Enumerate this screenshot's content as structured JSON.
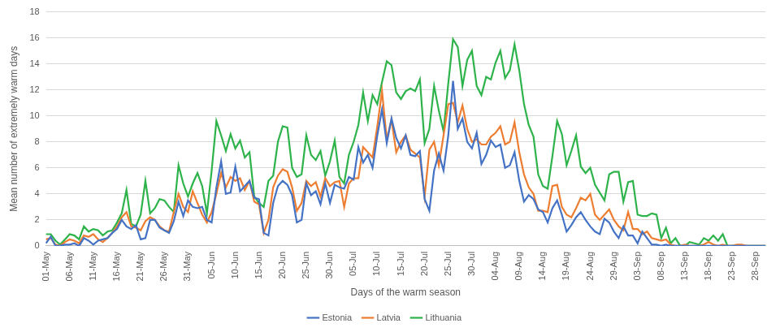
{
  "chart_data": {
    "type": "line",
    "x_label": "Days of the warm season",
    "y_label": "Mean number of extremely warm days",
    "categories": [
      "01-May",
      null,
      null,
      null,
      null,
      "06-May",
      null,
      null,
      null,
      null,
      "11-May",
      null,
      null,
      null,
      null,
      "16-May",
      null,
      null,
      null,
      null,
      "21-May",
      null,
      null,
      null,
      null,
      "26-May",
      null,
      null,
      null,
      null,
      "31-May",
      null,
      null,
      null,
      null,
      "05-Jun",
      null,
      null,
      null,
      null,
      "10-Jun",
      null,
      null,
      null,
      null,
      "15-Jun",
      null,
      null,
      null,
      null,
      "20-Jun",
      null,
      null,
      null,
      null,
      "25-Jun",
      null,
      null,
      null,
      null,
      "30-Jun",
      null,
      null,
      null,
      null,
      "05-Jul",
      null,
      null,
      null,
      null,
      "10-Jul",
      null,
      null,
      null,
      null,
      "15-Jul",
      null,
      null,
      null,
      null,
      "20-Jul",
      null,
      null,
      null,
      null,
      "25-Jul",
      null,
      null,
      null,
      null,
      "30-Jul",
      null,
      null,
      null,
      null,
      "04-Aug",
      null,
      null,
      null,
      null,
      "09-Aug",
      null,
      null,
      null,
      null,
      "14-Aug",
      null,
      null,
      null,
      null,
      "19-Aug",
      null,
      null,
      null,
      null,
      "24-Aug",
      null,
      null,
      null,
      null,
      "29-Aug",
      null,
      null,
      null,
      null,
      "03-Sep",
      null,
      null,
      null,
      null,
      "08-Sep",
      null,
      null,
      null,
      null,
      "13-Sep",
      null,
      null,
      null,
      null,
      "18-Sep",
      null,
      null,
      null,
      null,
      "23-Sep",
      null,
      null,
      null,
      null,
      "28-Sep",
      null,
      null
    ],
    "series": [
      {
        "name": "Estonia",
        "color": "#4472c4",
        "values": [
          0.2,
          0.7,
          0.0,
          0.0,
          0.1,
          0.1,
          0.2,
          0.0,
          0.6,
          0.4,
          0.1,
          0.4,
          0.5,
          0.6,
          1.0,
          1.3,
          2.0,
          1.5,
          1.3,
          1.6,
          0.5,
          0.6,
          2.0,
          2.0,
          1.4,
          1.2,
          1.0,
          1.9,
          3.4,
          2.3,
          3.5,
          3.0,
          2.9,
          3.0,
          2.0,
          1.8,
          4.5,
          6.5,
          4.0,
          4.1,
          6.1,
          4.2,
          4.6,
          5.0,
          3.7,
          3.6,
          1.0,
          0.8,
          3.3,
          4.6,
          5.0,
          4.7,
          3.9,
          1.8,
          2.0,
          4.8,
          3.9,
          4.2,
          3.2,
          4.8,
          3.3,
          4.7,
          4.5,
          4.4,
          5.3,
          5.1,
          7.6,
          6.4,
          7.0,
          6.0,
          8.5,
          10.5,
          7.9,
          9.8,
          8.3,
          7.5,
          8.5,
          7.0,
          6.9,
          7.3,
          3.6,
          2.7,
          5.8,
          7.1,
          5.8,
          8.5,
          12.7,
          9.0,
          9.8,
          8.0,
          7.5,
          8.7,
          6.3,
          7.0,
          8.1,
          7.6,
          7.8,
          6.0,
          6.2,
          7.2,
          5.0,
          3.4,
          3.9,
          3.6,
          2.8,
          2.6,
          1.8,
          2.9,
          3.5,
          2.4,
          1.1,
          1.6,
          2.2,
          2.6,
          2.0,
          1.5,
          1.1,
          0.9,
          2.1,
          1.8,
          1.1,
          0.6,
          1.5,
          0.8,
          0.8,
          0.2,
          1.1,
          0.6,
          0.1,
          0.1,
          0.0,
          0.1,
          0.0,
          0.0,
          0.0,
          0.0,
          0.0,
          0.0,
          0.0,
          0.0,
          0.0,
          0.0,
          0.0,
          0.0,
          0.0,
          0.0,
          0.0,
          0.0,
          0.0,
          0.0,
          0.0,
          0.0,
          0.0
        ]
      },
      {
        "name": "Latvia",
        "color": "#ed7d31",
        "values": [
          0.5,
          0.6,
          0.1,
          0.0,
          0.3,
          0.5,
          0.4,
          0.2,
          0.8,
          0.7,
          0.9,
          0.5,
          0.3,
          0.6,
          1.0,
          1.5,
          2.2,
          2.6,
          1.5,
          1.4,
          1.2,
          1.9,
          2.2,
          2.0,
          1.5,
          1.2,
          1.1,
          2.6,
          4.0,
          3.0,
          2.6,
          4.2,
          3.3,
          2.4,
          1.8,
          2.6,
          4.0,
          5.6,
          4.5,
          5.3,
          5.0,
          5.2,
          4.3,
          5.0,
          3.4,
          3.2,
          1.0,
          2.0,
          4.5,
          5.4,
          5.9,
          5.7,
          4.5,
          2.7,
          3.3,
          5.0,
          4.6,
          4.9,
          3.8,
          5.2,
          4.6,
          4.9,
          5.0,
          3.0,
          4.8,
          5.2,
          5.2,
          7.6,
          7.2,
          6.8,
          9.2,
          11.9,
          8.2,
          9.7,
          7.2,
          8.0,
          8.5,
          7.4,
          7.1,
          6.8,
          3.8,
          7.4,
          8.0,
          6.2,
          8.5,
          10.9,
          11.0,
          9.5,
          10.8,
          9.0,
          8.0,
          8.2,
          7.8,
          7.8,
          8.4,
          8.7,
          9.2,
          7.8,
          8.0,
          9.5,
          7.2,
          5.5,
          4.5,
          4.0,
          2.7,
          2.7,
          2.6,
          4.6,
          4.7,
          3.0,
          2.4,
          2.2,
          2.9,
          3.7,
          3.5,
          4.0,
          2.4,
          2.0,
          2.4,
          2.8,
          2.0,
          1.5,
          1.2,
          2.6,
          1.3,
          1.3,
          0.9,
          1.1,
          0.6,
          0.5,
          0.4,
          0.5,
          0.1,
          0.0,
          0.0,
          0.1,
          0.0,
          0.0,
          0.0,
          0.1,
          0.3,
          0.1,
          0.0,
          0.1,
          0.0,
          0.0,
          0.1,
          0.1,
          0.0,
          0.0,
          0.0,
          0.0,
          0.0
        ]
      },
      {
        "name": "Lithuania",
        "color": "#2db34a",
        "values": [
          0.9,
          0.9,
          0.4,
          0.1,
          0.5,
          0.9,
          0.8,
          0.5,
          1.5,
          1.1,
          1.3,
          1.2,
          0.8,
          1.1,
          1.2,
          1.8,
          2.5,
          4.3,
          1.7,
          1.5,
          2.4,
          5.0,
          2.5,
          2.9,
          3.6,
          3.5,
          3.0,
          2.6,
          6.2,
          4.8,
          3.8,
          4.8,
          5.6,
          4.6,
          2.5,
          5.8,
          9.6,
          8.5,
          7.3,
          8.6,
          7.5,
          8.1,
          6.8,
          7.2,
          3.8,
          3.3,
          3.0,
          5.0,
          5.4,
          8.0,
          9.2,
          9.1,
          6.0,
          5.3,
          5.5,
          8.5,
          7.0,
          6.6,
          7.3,
          5.4,
          6.5,
          8.1,
          5.3,
          4.8,
          7.0,
          8.0,
          9.3,
          11.8,
          9.6,
          11.6,
          10.9,
          12.6,
          14.2,
          13.9,
          11.8,
          11.3,
          11.9,
          12.1,
          11.9,
          12.8,
          7.9,
          9.0,
          12.3,
          10.4,
          8.8,
          12.5,
          15.9,
          15.3,
          12.3,
          14.3,
          15.0,
          12.3,
          11.6,
          13.0,
          12.8,
          14.1,
          15.0,
          12.9,
          13.5,
          15.5,
          13.5,
          10.9,
          9.3,
          8.4,
          5.5,
          4.6,
          4.4,
          6.9,
          9.6,
          8.6,
          6.2,
          7.3,
          8.5,
          6.1,
          5.6,
          6.0,
          4.7,
          4.1,
          3.5,
          5.5,
          5.7,
          5.7,
          3.4,
          4.9,
          5.0,
          2.4,
          2.3,
          2.3,
          2.5,
          2.4,
          0.6,
          1.4,
          0.2,
          0.6,
          0.0,
          0.0,
          0.3,
          0.2,
          0.1,
          0.6,
          0.4,
          0.8,
          0.4,
          0.9,
          0.0,
          0.0,
          0.0,
          0.0,
          0.0,
          0.0,
          0.0,
          0.0,
          0.0
        ]
      }
    ],
    "ylim": [
      0,
      18
    ],
    "yticks": [
      0,
      2,
      4,
      6,
      8,
      10,
      12,
      14,
      16,
      18
    ],
    "grid": true,
    "legend": "bottom"
  }
}
